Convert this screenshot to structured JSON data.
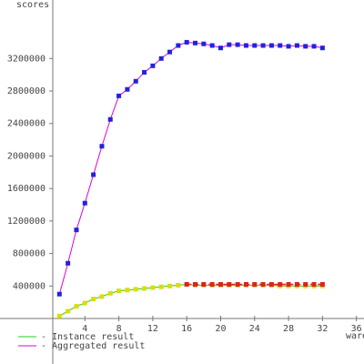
{
  "chart_data": {
    "type": "line",
    "y_label": "scores",
    "x_label": "wares",
    "xlim": [
      0,
      37
    ],
    "ylim": [
      0,
      3920000
    ],
    "xticks": [
      4,
      8,
      12,
      16,
      20,
      24,
      28,
      32,
      36
    ],
    "yticks": [
      400000,
      800000,
      1200000,
      1600000,
      2000000,
      2400000,
      2800000,
      3200000
    ],
    "x": [
      1,
      2,
      3,
      4,
      5,
      6,
      7,
      8,
      9,
      10,
      11,
      12,
      13,
      14,
      15,
      16,
      17,
      18,
      19,
      20,
      21,
      22,
      23,
      24,
      25,
      26,
      27,
      28,
      29,
      30,
      31,
      32
    ],
    "series": [
      {
        "name": "- Instance result",
        "color": "#22cc22",
        "marker_color": "#dddd00",
        "values": [
          30000,
          90000,
          150000,
          190000,
          240000,
          270000,
          310000,
          340000,
          350000,
          360000,
          370000,
          380000,
          390000,
          400000,
          410000,
          420000,
          410000,
          410000,
          410000,
          410000,
          410000,
          410000,
          410000,
          410000,
          410000,
          410000,
          400000,
          400000,
          400000,
          400000,
          400000,
          400000
        ]
      },
      {
        "name": "- Aggregated result",
        "color": "#dd00dd",
        "marker_color": "#2222dd",
        "values": [
          300000,
          680000,
          1090000,
          1420000,
          1770000,
          2120000,
          2450000,
          2740000,
          2820000,
          2920000,
          3030000,
          3110000,
          3200000,
          3280000,
          3360000,
          3400000,
          3390000,
          3380000,
          3360000,
          3330000,
          3370000,
          3370000,
          3360000,
          3360000,
          3360000,
          3360000,
          3360000,
          3350000,
          3360000,
          3350000,
          3350000,
          3330000
        ]
      },
      {
        "color": "#dd2222",
        "marker_color": "#dd2222",
        "dash": true,
        "values": [
          null,
          null,
          null,
          null,
          null,
          null,
          null,
          null,
          null,
          null,
          null,
          null,
          null,
          null,
          null,
          420000,
          420000,
          420000,
          420000,
          420000,
          420000,
          420000,
          420000,
          420000,
          420000,
          420000,
          420000,
          420000,
          420000,
          420000,
          420000,
          420000
        ]
      }
    ]
  }
}
